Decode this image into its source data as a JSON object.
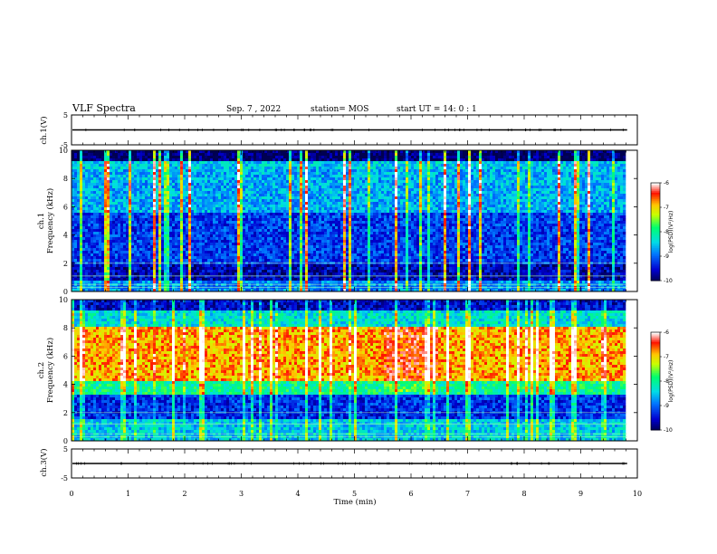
{
  "header": {
    "title": "VLF Spectra",
    "date": "Sep. 7 , 2022",
    "station": "station= MOS",
    "start": "start UT =   14: 0  : 1"
  },
  "chart_data": [
    {
      "type": "line",
      "name": "ch1-waveform",
      "ylabel": "ch.1(V)",
      "ylim": [
        -5,
        5
      ],
      "yticks": [
        "5",
        "-5"
      ],
      "xlim": [
        0,
        10
      ],
      "level": 0,
      "xmax_data": 9.82
    },
    {
      "type": "heatmap",
      "name": "ch1-spectrogram",
      "ylabel": "ch.1\nFrequency (kHz)",
      "ylim": [
        0,
        10
      ],
      "yticks": [
        "0",
        "2",
        "4",
        "6",
        "8",
        "10"
      ],
      "xlim": [
        0,
        10
      ],
      "xmax_data": 9.82,
      "colorbar": {
        "label": "log(PSD)(V²/Hz)",
        "range": [
          -10,
          -6
        ],
        "ticks": [
          "-6",
          "-7",
          "-8",
          "-9",
          "-10"
        ]
      }
    },
    {
      "type": "heatmap",
      "name": "ch2-spectrogram",
      "ylabel": "ch.2\nFrequency (kHz)",
      "ylim": [
        0,
        10
      ],
      "yticks": [
        "0",
        "2",
        "4",
        "6",
        "8",
        "10"
      ],
      "xlim": [
        0,
        10
      ],
      "xmax_data": 9.82,
      "colorbar": {
        "label": "log(PSD)(V²/Hz)",
        "range": [
          -10,
          -6
        ],
        "ticks": [
          "-6",
          "-7",
          "-8",
          "-9",
          "-10"
        ]
      }
    },
    {
      "type": "line",
      "name": "ch3-waveform",
      "ylabel": "ch.3(V)",
      "ylim": [
        -5,
        5
      ],
      "yticks": [
        "5",
        "-5"
      ],
      "xlim": [
        0,
        10
      ],
      "level": 0,
      "xmax_data": 9.82
    }
  ],
  "xaxis": {
    "label": "Time (min)",
    "ticks": [
      "0",
      "1",
      "2",
      "3",
      "4",
      "5",
      "6",
      "7",
      "8",
      "9",
      "10"
    ]
  },
  "colors": {
    "axis": "#000000",
    "colormap": [
      "#000066",
      "#0000ff",
      "#00c8ff",
      "#00ff80",
      "#ffff00",
      "#ff0000",
      "#ffffff"
    ]
  }
}
